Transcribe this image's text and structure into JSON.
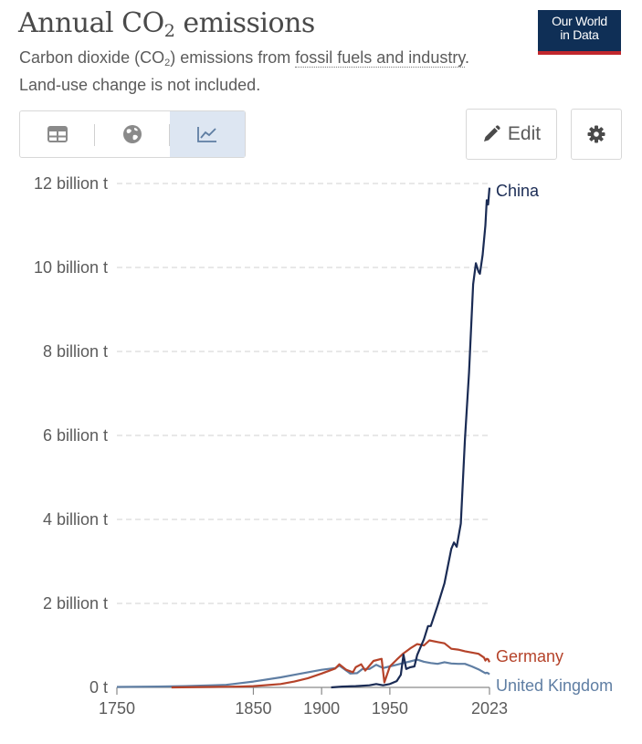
{
  "header": {
    "title_main": "Annual CO",
    "title_sub": "2",
    "title_end": " emissions",
    "subtitle_a": "Carbon dioxide (CO",
    "subtitle_sub": "2",
    "subtitle_b": ") emissions from ",
    "subtitle_link": "fossil fuels and industry",
    "subtitle_c": ". Land-use change is not included.",
    "logo_line1": "Our World",
    "logo_line2": "in Data"
  },
  "toolbar": {
    "tabs": [
      {
        "icon": "table-icon",
        "label": "Table"
      },
      {
        "icon": "globe-icon",
        "label": "Map"
      },
      {
        "icon": "line-chart-icon",
        "label": "Chart"
      }
    ],
    "active_tab": "Chart",
    "edit_label": "Edit",
    "edit_icon": "pencil-icon",
    "settings_icon": "gear-icon"
  },
  "colors": {
    "china": "#1a2b54",
    "germany": "#b5432a",
    "uk": "#5f7ea3",
    "grid": "#d9d9d9"
  },
  "chart_data": {
    "type": "line",
    "title": "Annual CO₂ emissions",
    "subtitle": "Carbon dioxide (CO₂) emissions from fossil fuels and industry. Land-use change is not included.",
    "xlabel": "",
    "ylabel": "",
    "xlim": [
      1750,
      2023
    ],
    "ylim": [
      0,
      12
    ],
    "x_ticks": [
      {
        "value": 1750,
        "label": "1750"
      },
      {
        "value": 1850,
        "label": "1850"
      },
      {
        "value": 1900,
        "label": "1900"
      },
      {
        "value": 1950,
        "label": "1950"
      },
      {
        "value": 2023,
        "label": "2023"
      }
    ],
    "y_ticks": [
      {
        "value": 0,
        "label": "0 t"
      },
      {
        "value": 2,
        "label": "2 billion t"
      },
      {
        "value": 4,
        "label": "4 billion t"
      },
      {
        "value": 6,
        "label": "6 billion t"
      },
      {
        "value": 8,
        "label": "8 billion t"
      },
      {
        "value": 10,
        "label": "10 billion t"
      },
      {
        "value": 12,
        "label": "12 billion t"
      }
    ],
    "grid": true,
    "legend": "inline labels at line ends",
    "unit": "billion t",
    "series": [
      {
        "name": "China",
        "key": "china",
        "points": [
          [
            1907,
            0.0
          ],
          [
            1915,
            0.02
          ],
          [
            1925,
            0.03
          ],
          [
            1935,
            0.05
          ],
          [
            1940,
            0.08
          ],
          [
            1945,
            0.05
          ],
          [
            1950,
            0.08
          ],
          [
            1955,
            0.15
          ],
          [
            1958,
            0.3
          ],
          [
            1960,
            0.78
          ],
          [
            1962,
            0.44
          ],
          [
            1965,
            0.48
          ],
          [
            1968,
            0.5
          ],
          [
            1970,
            0.77
          ],
          [
            1975,
            1.15
          ],
          [
            1978,
            1.46
          ],
          [
            1980,
            1.46
          ],
          [
            1985,
            1.95
          ],
          [
            1990,
            2.48
          ],
          [
            1995,
            3.3
          ],
          [
            1997,
            3.45
          ],
          [
            1999,
            3.35
          ],
          [
            2002,
            3.9
          ],
          [
            2005,
            5.9
          ],
          [
            2008,
            7.5
          ],
          [
            2011,
            9.6
          ],
          [
            2013,
            10.1
          ],
          [
            2015,
            9.9
          ],
          [
            2016,
            9.85
          ],
          [
            2018,
            10.3
          ],
          [
            2020,
            11.0
          ],
          [
            2021,
            11.6
          ],
          [
            2022,
            11.5
          ],
          [
            2023,
            11.9
          ]
        ]
      },
      {
        "name": "Germany",
        "key": "germany",
        "points": [
          [
            1790,
            0.0
          ],
          [
            1820,
            0.01
          ],
          [
            1840,
            0.02
          ],
          [
            1850,
            0.03
          ],
          [
            1870,
            0.08
          ],
          [
            1880,
            0.14
          ],
          [
            1890,
            0.22
          ],
          [
            1900,
            0.33
          ],
          [
            1910,
            0.45
          ],
          [
            1913,
            0.55
          ],
          [
            1918,
            0.42
          ],
          [
            1923,
            0.36
          ],
          [
            1925,
            0.48
          ],
          [
            1929,
            0.55
          ],
          [
            1932,
            0.4
          ],
          [
            1938,
            0.63
          ],
          [
            1944,
            0.68
          ],
          [
            1946,
            0.12
          ],
          [
            1950,
            0.5
          ],
          [
            1955,
            0.66
          ],
          [
            1960,
            0.81
          ],
          [
            1965,
            0.93
          ],
          [
            1970,
            1.03
          ],
          [
            1975,
            1.0
          ],
          [
            1979,
            1.12
          ],
          [
            1985,
            1.08
          ],
          [
            1990,
            1.05
          ],
          [
            1995,
            0.92
          ],
          [
            2000,
            0.9
          ],
          [
            2005,
            0.86
          ],
          [
            2010,
            0.83
          ],
          [
            2015,
            0.8
          ],
          [
            2019,
            0.71
          ],
          [
            2020,
            0.64
          ],
          [
            2021,
            0.68
          ],
          [
            2022,
            0.67
          ],
          [
            2023,
            0.6
          ]
        ]
      },
      {
        "name": "United Kingdom",
        "key": "uk",
        "points": [
          [
            1750,
            0.01
          ],
          [
            1780,
            0.02
          ],
          [
            1800,
            0.03
          ],
          [
            1820,
            0.05
          ],
          [
            1830,
            0.06
          ],
          [
            1850,
            0.14
          ],
          [
            1870,
            0.24
          ],
          [
            1880,
            0.3
          ],
          [
            1890,
            0.36
          ],
          [
            1900,
            0.42
          ],
          [
            1910,
            0.46
          ],
          [
            1913,
            0.52
          ],
          [
            1921,
            0.33
          ],
          [
            1926,
            0.34
          ],
          [
            1930,
            0.44
          ],
          [
            1935,
            0.44
          ],
          [
            1940,
            0.54
          ],
          [
            1945,
            0.46
          ],
          [
            1950,
            0.5
          ],
          [
            1955,
            0.54
          ],
          [
            1960,
            0.58
          ],
          [
            1965,
            0.62
          ],
          [
            1970,
            0.66
          ],
          [
            1975,
            0.61
          ],
          [
            1980,
            0.58
          ],
          [
            1985,
            0.56
          ],
          [
            1990,
            0.6
          ],
          [
            1995,
            0.57
          ],
          [
            2000,
            0.56
          ],
          [
            2005,
            0.56
          ],
          [
            2010,
            0.5
          ],
          [
            2015,
            0.43
          ],
          [
            2020,
            0.34
          ],
          [
            2021,
            0.35
          ],
          [
            2022,
            0.34
          ],
          [
            2023,
            0.31
          ]
        ]
      }
    ]
  }
}
